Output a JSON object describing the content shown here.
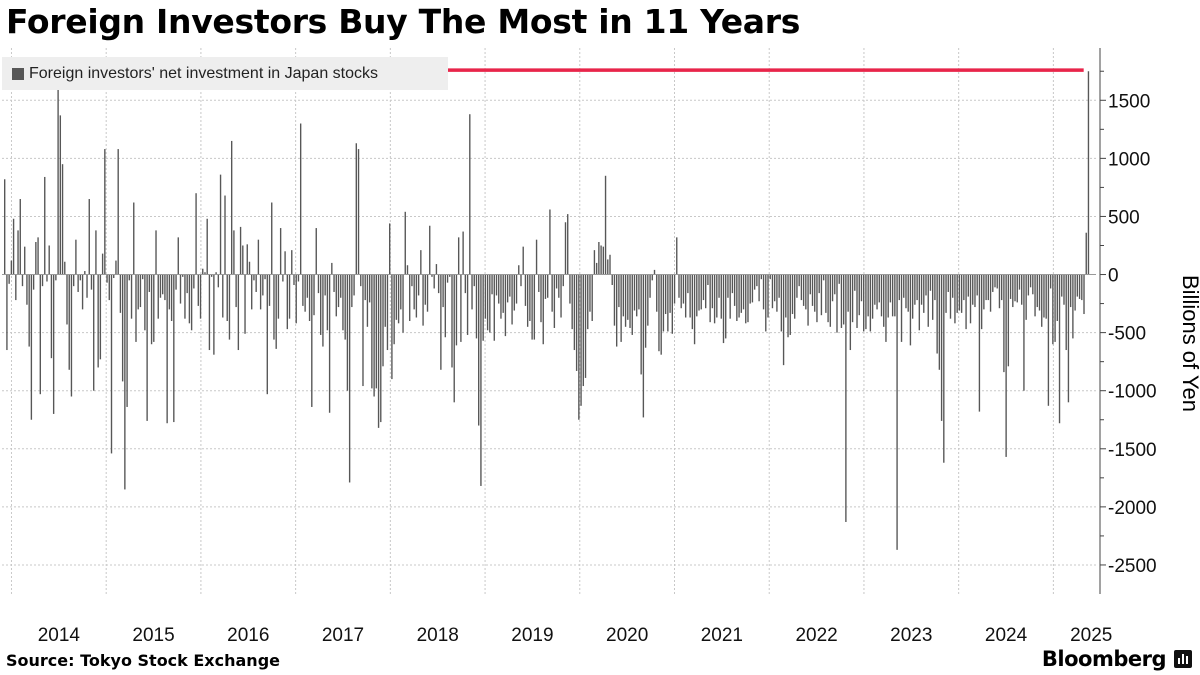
{
  "title": "Foreign Investors Buy The Most in 11 Years",
  "legend": {
    "label": "Foreign investors' net investment in Japan stocks"
  },
  "source": "Source: Tokyo Stock Exchange",
  "brand": "Bloomberg",
  "colors": {
    "bar": "#575757",
    "annotation": "#e8254a",
    "grid": "#c8c8c8",
    "legend_bg": "#eeeeee"
  },
  "chart_data": {
    "type": "bar",
    "title": "Foreign Investors Buy The Most in 11 Years",
    "ylabel": "Billions of Yen",
    "xlabel": "",
    "ylim": [
      -2750,
      1950
    ],
    "yticks": [
      1500,
      1000,
      500,
      0,
      -500,
      -1000,
      -1500,
      -2000,
      -2500
    ],
    "ytick_labels": [
      "1500",
      "1000",
      "500",
      "0",
      "-500",
      "-1000",
      "-1500",
      "-2000",
      "-2500"
    ],
    "xlim": [
      2013.9,
      2025.45
    ],
    "year_labels": [
      "2014",
      "2015",
      "2016",
      "2017",
      "2018",
      "2019",
      "2020",
      "2021",
      "2022",
      "2023",
      "2024",
      "2025"
    ],
    "series": [
      {
        "name": "Foreign investors' net investment in Japan stocks",
        "frequency": "weekly",
        "start": 2013.9,
        "values": [
          820,
          -650,
          -80,
          120,
          480,
          -220,
          380,
          650,
          -100,
          240,
          -260,
          -620,
          -1250,
          -130,
          280,
          320,
          -1030,
          -100,
          840,
          -60,
          250,
          -720,
          -1200,
          -50,
          1800,
          1370,
          950,
          110,
          -430,
          -820,
          -1050,
          -100,
          300,
          -150,
          -50,
          -300,
          30,
          -200,
          650,
          -130,
          -1000,
          380,
          -800,
          -730,
          180,
          1080,
          -70,
          -220,
          -1540,
          -30,
          120,
          1080,
          -330,
          -920,
          -1850,
          -1140,
          -50,
          -380,
          620,
          -580,
          -300,
          -280,
          -40,
          -480,
          -1260,
          -150,
          -600,
          -580,
          380,
          -380,
          -200,
          -170,
          -220,
          -1280,
          -300,
          -400,
          -1270,
          -130,
          320,
          -250,
          -20,
          -380,
          -160,
          -420,
          -480,
          -120,
          700,
          -270,
          -380,
          50,
          20,
          480,
          -650,
          -20,
          -690,
          20,
          -110,
          860,
          -370,
          680,
          -400,
          -560,
          1150,
          380,
          -280,
          -650,
          410,
          250,
          -510,
          260,
          110,
          -300,
          -50,
          -150,
          300,
          -300,
          -180,
          -40,
          -1030,
          -270,
          620,
          -560,
          -640,
          -380,
          400,
          -60,
          200,
          -470,
          -380,
          210,
          -90,
          -420,
          -60,
          1300,
          -270,
          -320,
          -200,
          -400,
          -1140,
          -350,
          400,
          -160,
          -520,
          -620,
          -180,
          -480,
          -1190,
          100,
          -150,
          -360,
          -280,
          -200,
          -480,
          -560,
          -1000,
          -1790,
          -280,
          -180,
          1130,
          1080,
          -100,
          -960,
          -220,
          -450,
          -240,
          -980,
          -1050,
          -980,
          -1320,
          -1270,
          -790,
          -450,
          -650,
          440,
          -900,
          -600,
          -390,
          -420,
          -300,
          -500,
          540,
          80,
          -400,
          -100,
          -300,
          -370,
          -180,
          210,
          -440,
          -260,
          -320,
          420,
          -20,
          -120,
          90,
          -160,
          -820,
          -280,
          -540,
          -70,
          -20,
          -800,
          -1100,
          -610,
          320,
          -580,
          370,
          -160,
          -520,
          1380,
          -300,
          -100,
          -550,
          -1300,
          -1820,
          -570,
          -380,
          -480,
          -500,
          -170,
          -570,
          -180,
          -250,
          -380,
          -330,
          -530,
          -240,
          -190,
          -430,
          -310,
          -250,
          80,
          -100,
          240,
          -270,
          -450,
          -400,
          -560,
          -560,
          300,
          -150,
          -410,
          -600,
          -210,
          -200,
          560,
          -320,
          -460,
          -120,
          -200,
          -370,
          -100,
          450,
          520,
          -250,
          -470,
          -650,
          -830,
          -1250,
          -1130,
          -960,
          -890,
          -470,
          -320,
          -400,
          210,
          100,
          280,
          250,
          240,
          850,
          130,
          170,
          -90,
          -440,
          -620,
          -280,
          -580,
          -360,
          -450,
          -390,
          -460,
          -520,
          -310,
          -360,
          -300,
          -860,
          -1230,
          -630,
          -440,
          -200,
          -50,
          40,
          -320,
          -660,
          -690,
          -490,
          -340,
          -490,
          -330,
          -510,
          -250,
          320,
          -200,
          -290,
          -250,
          -370,
          -160,
          -370,
          -470,
          -600,
          -360,
          -310,
          -300,
          -220,
          -290,
          -90,
          -410,
          -290,
          -420,
          -370,
          -200,
          -380,
          -590,
          -550,
          -200,
          -380,
          -160,
          -270,
          -400,
          -370,
          -330,
          -300,
          -420,
          -410,
          -250,
          -240,
          -130,
          -100,
          -230,
          -40,
          -300,
          -490,
          -370,
          -40,
          -290,
          -230,
          -320,
          -200,
          -490,
          -780,
          -370,
          -540,
          -520,
          -340,
          -380,
          -200,
          -100,
          -220,
          -270,
          -300,
          -440,
          -170,
          -270,
          -320,
          -410,
          -160,
          -350,
          -50,
          -330,
          -410,
          -450,
          -230,
          -170,
          -500,
          -80,
          -460,
          -430,
          -2130,
          -320,
          -650,
          -410,
          -140,
          -460,
          -350,
          -230,
          -490,
          -470,
          -360,
          -490,
          -380,
          -260,
          -300,
          -240,
          -360,
          -450,
          -580,
          -370,
          -240,
          -360,
          -360,
          -2370,
          -220,
          -580,
          -200,
          -290,
          -320,
          -610,
          -380,
          -260,
          -220,
          -480,
          -260,
          -330,
          -180,
          -450,
          -140,
          -390,
          -220,
          -680,
          -820,
          -1260,
          -1620,
          -330,
          -150,
          -380,
          -200,
          -420,
          -330,
          -310,
          -330,
          -220,
          -470,
          -190,
          -420,
          -260,
          -280,
          -180,
          -1180,
          -470,
          -300,
          -220,
          -220,
          -320,
          -150,
          -110,
          -120,
          -290,
          -220,
          -840,
          -1570,
          -790,
          -210,
          -280,
          -230,
          -240,
          -130,
          -260,
          -1000,
          -390,
          -180,
          -110,
          -170,
          -360,
          -280,
          -310,
          -450,
          -370,
          -380,
          -1130,
          -120,
          -600,
          -580,
          -400,
          -1280,
          -190,
          -260,
          -650,
          -1100,
          -280,
          -550,
          -310,
          -190,
          -210,
          -220,
          -340,
          360,
          1750
        ]
      }
    ],
    "annotations": [
      {
        "type": "horizontal-line",
        "value": 1760,
        "label": ""
      }
    ]
  }
}
